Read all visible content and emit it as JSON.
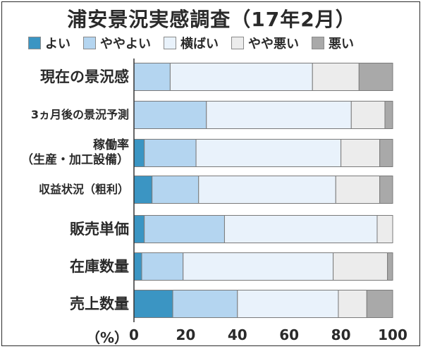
{
  "chart_data": {
    "type": "bar",
    "orientation": "horizontal",
    "stacked": true,
    "title": "浦安景況実感調査（17年2月）",
    "categories": [
      "現在の景況感",
      "3ヵ月後の景況予測",
      "稼働率\n（生産・加工設備）",
      "収益状況（粗利）",
      "販売単価",
      "在庫数量",
      "売上数量"
    ],
    "series": [
      {
        "name": "よい",
        "color": "#3b95c3",
        "values": [
          0,
          0,
          4,
          7,
          4,
          3,
          15
        ]
      },
      {
        "name": "ややよい",
        "color": "#b4d5f0",
        "values": [
          14,
          28,
          20,
          18,
          31,
          16,
          25
        ]
      },
      {
        "name": "横ばい",
        "color": "#e9f2fb",
        "values": [
          55,
          56,
          56,
          53,
          59,
          58,
          39
        ]
      },
      {
        "name": "やや悪い",
        "color": "#ececec",
        "values": [
          18,
          13,
          15,
          17,
          6,
          21,
          11
        ]
      },
      {
        "name": "悪い",
        "color": "#a9a9a9",
        "values": [
          13,
          3,
          5,
          5,
          0,
          2,
          10
        ]
      }
    ],
    "xlim": [
      0,
      100
    ],
    "xticks": [
      "0",
      "20",
      "40",
      "60",
      "80",
      "100"
    ],
    "xunit": "（%）",
    "legend_position": "top"
  }
}
